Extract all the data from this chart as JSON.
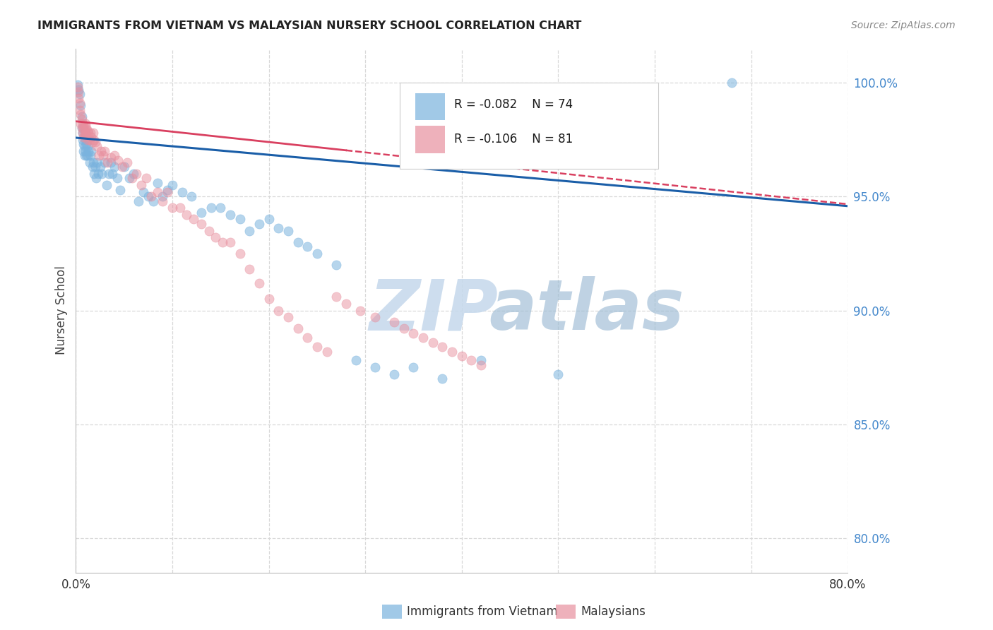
{
  "title": "IMMIGRANTS FROM VIETNAM VS MALAYSIAN NURSERY SCHOOL CORRELATION CHART",
  "source": "Source: ZipAtlas.com",
  "ylabel": "Nursery School",
  "ytick_labels": [
    "100.0%",
    "95.0%",
    "90.0%",
    "85.0%",
    "80.0%"
  ],
  "ytick_values": [
    1.0,
    0.95,
    0.9,
    0.85,
    0.8
  ],
  "xlim": [
    0.0,
    0.8
  ],
  "ylim": [
    0.785,
    1.015
  ],
  "legend_blue_R": "R = -0.082",
  "legend_blue_N": "N = 74",
  "legend_pink_R": "R = -0.106",
  "legend_pink_N": "N = 81",
  "legend_blue_label": "Immigrants from Vietnam",
  "legend_pink_label": "Malaysians",
  "blue_color": "#7ab3de",
  "pink_color": "#e8909f",
  "trendline_blue_color": "#1a5ea8",
  "trendline_pink_color": "#d94060",
  "blue_scatter_x": [
    0.002,
    0.003,
    0.004,
    0.005,
    0.006,
    0.006,
    0.007,
    0.007,
    0.008,
    0.008,
    0.009,
    0.009,
    0.01,
    0.01,
    0.011,
    0.011,
    0.012,
    0.012,
    0.013,
    0.014,
    0.015,
    0.016,
    0.017,
    0.018,
    0.019,
    0.02,
    0.021,
    0.022,
    0.023,
    0.025,
    0.027,
    0.03,
    0.032,
    0.034,
    0.036,
    0.038,
    0.04,
    0.043,
    0.046,
    0.05,
    0.055,
    0.06,
    0.065,
    0.07,
    0.075,
    0.08,
    0.085,
    0.09,
    0.095,
    0.1,
    0.11,
    0.12,
    0.13,
    0.14,
    0.15,
    0.16,
    0.17,
    0.18,
    0.19,
    0.2,
    0.21,
    0.22,
    0.23,
    0.24,
    0.25,
    0.27,
    0.29,
    0.31,
    0.33,
    0.35,
    0.38,
    0.42,
    0.5,
    0.68
  ],
  "blue_scatter_y": [
    0.999,
    0.997,
    0.995,
    0.99,
    0.985,
    0.98,
    0.978,
    0.975,
    0.973,
    0.97,
    0.972,
    0.968,
    0.975,
    0.97,
    0.973,
    0.968,
    0.972,
    0.968,
    0.97,
    0.965,
    0.968,
    0.97,
    0.963,
    0.965,
    0.96,
    0.963,
    0.958,
    0.965,
    0.96,
    0.963,
    0.96,
    0.965,
    0.955,
    0.96,
    0.965,
    0.96,
    0.963,
    0.958,
    0.953,
    0.963,
    0.958,
    0.96,
    0.948,
    0.952,
    0.95,
    0.948,
    0.956,
    0.95,
    0.953,
    0.955,
    0.952,
    0.95,
    0.943,
    0.945,
    0.945,
    0.942,
    0.94,
    0.935,
    0.938,
    0.94,
    0.936,
    0.935,
    0.93,
    0.928,
    0.925,
    0.92,
    0.878,
    0.875,
    0.872,
    0.875,
    0.87,
    0.878,
    0.872,
    1.0
  ],
  "pink_scatter_x": [
    0.002,
    0.003,
    0.003,
    0.004,
    0.004,
    0.005,
    0.005,
    0.006,
    0.006,
    0.007,
    0.007,
    0.008,
    0.008,
    0.009,
    0.009,
    0.01,
    0.01,
    0.011,
    0.011,
    0.012,
    0.012,
    0.013,
    0.014,
    0.015,
    0.016,
    0.017,
    0.018,
    0.019,
    0.02,
    0.022,
    0.024,
    0.026,
    0.028,
    0.03,
    0.033,
    0.036,
    0.04,
    0.044,
    0.048,
    0.053,
    0.058,
    0.063,
    0.068,
    0.073,
    0.078,
    0.085,
    0.09,
    0.095,
    0.1,
    0.108,
    0.115,
    0.122,
    0.13,
    0.138,
    0.145,
    0.152,
    0.16,
    0.17,
    0.18,
    0.19,
    0.2,
    0.21,
    0.22,
    0.23,
    0.24,
    0.25,
    0.26,
    0.27,
    0.28,
    0.295,
    0.31,
    0.33,
    0.34,
    0.35,
    0.36,
    0.37,
    0.38,
    0.39,
    0.4,
    0.41,
    0.42
  ],
  "pink_scatter_y": [
    0.998,
    0.996,
    0.993,
    0.991,
    0.988,
    0.986,
    0.982,
    0.984,
    0.98,
    0.982,
    0.978,
    0.98,
    0.976,
    0.98,
    0.977,
    0.982,
    0.978,
    0.98,
    0.977,
    0.979,
    0.975,
    0.978,
    0.975,
    0.978,
    0.976,
    0.974,
    0.978,
    0.975,
    0.974,
    0.972,
    0.968,
    0.97,
    0.968,
    0.97,
    0.965,
    0.967,
    0.968,
    0.966,
    0.963,
    0.965,
    0.958,
    0.96,
    0.955,
    0.958,
    0.95,
    0.952,
    0.948,
    0.952,
    0.945,
    0.945,
    0.942,
    0.94,
    0.938,
    0.935,
    0.932,
    0.93,
    0.93,
    0.925,
    0.918,
    0.912,
    0.905,
    0.9,
    0.897,
    0.892,
    0.888,
    0.884,
    0.882,
    0.906,
    0.903,
    0.9,
    0.897,
    0.895,
    0.892,
    0.89,
    0.888,
    0.886,
    0.884,
    0.882,
    0.88,
    0.878,
    0.876
  ],
  "blue_trendline_x": [
    0.0,
    0.8
  ],
  "blue_trendline_y": [
    0.9758,
    0.9458
  ],
  "pink_trendline_x": [
    0.0,
    0.55
  ],
  "pink_trendline_y": [
    0.983,
    0.958
  ],
  "grid_color": "#d8d8d8",
  "background_color": "#ffffff",
  "watermark_zip_color": "#c5d8ec",
  "watermark_atlas_color": "#9dbbd4"
}
